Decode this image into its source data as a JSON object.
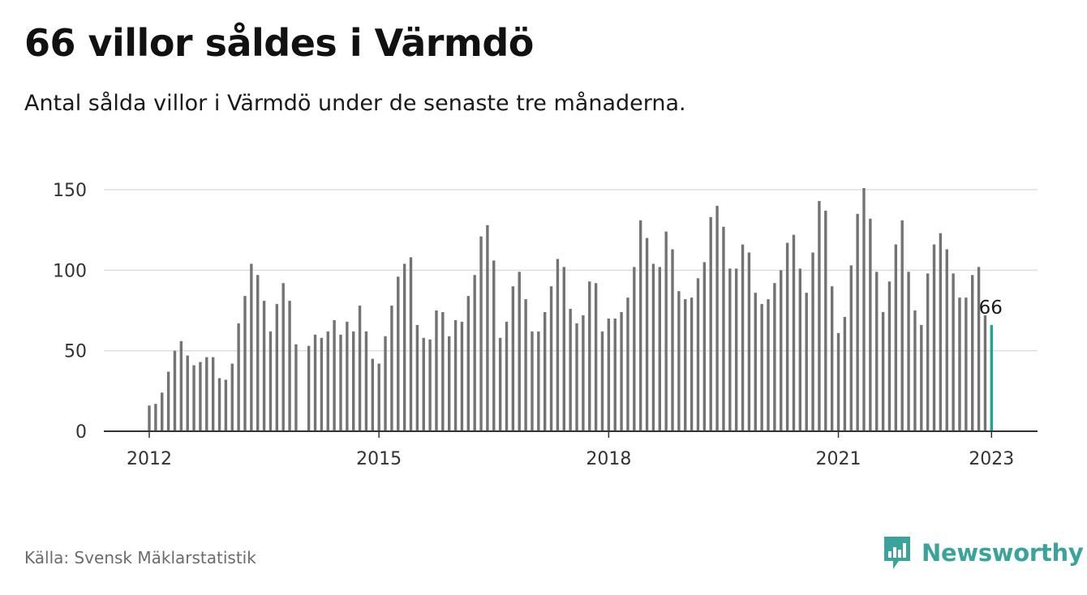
{
  "header": {
    "title": "66 villor såldes i Värmdö",
    "subtitle": "Antal sålda villor i Värmdö under de senaste tre månaderna."
  },
  "footer": {
    "source": "Källa: Svensk Mäklarstatistik",
    "brand": "Newsworthy",
    "brand_icon": "bar-chart-icon"
  },
  "colors": {
    "bar": "#737373",
    "highlight": "#1fa394",
    "grid": "#dddddd",
    "axis": "#333333",
    "brand": "#3aa39b"
  },
  "chart_data": {
    "type": "bar",
    "x_start": "2012-01",
    "x_interval": "month",
    "xticks": [
      "2012",
      "2015",
      "2018",
      "2021",
      "2023"
    ],
    "yticks": [
      0,
      50,
      100,
      150
    ],
    "ylim": [
      0,
      150
    ],
    "grid": true,
    "highlight_label": "66",
    "values": [
      16,
      17,
      24,
      37,
      50,
      56,
      47,
      41,
      43,
      46,
      46,
      33,
      32,
      42,
      67,
      84,
      104,
      97,
      81,
      62,
      79,
      92,
      81,
      54,
      null,
      53,
      60,
      58,
      62,
      69,
      60,
      68,
      62,
      78,
      62,
      45,
      42,
      59,
      78,
      96,
      104,
      108,
      66,
      58,
      57,
      75,
      74,
      59,
      69,
      68,
      84,
      97,
      121,
      128,
      106,
      58,
      68,
      90,
      99,
      82,
      62,
      62,
      74,
      90,
      107,
      102,
      76,
      67,
      72,
      93,
      92,
      62,
      70,
      70,
      74,
      83,
      102,
      131,
      120,
      104,
      102,
      124,
      113,
      87,
      82,
      83,
      95,
      105,
      133,
      140,
      127,
      101,
      101,
      116,
      111,
      86,
      79,
      82,
      92,
      100,
      117,
      122,
      101,
      86,
      111,
      143,
      137,
      90,
      61,
      71,
      103,
      135,
      151,
      132,
      99,
      74,
      93,
      116,
      131,
      99,
      75,
      66,
      98,
      116,
      123,
      113,
      98,
      83,
      83,
      97,
      102,
      72,
      66
    ]
  }
}
